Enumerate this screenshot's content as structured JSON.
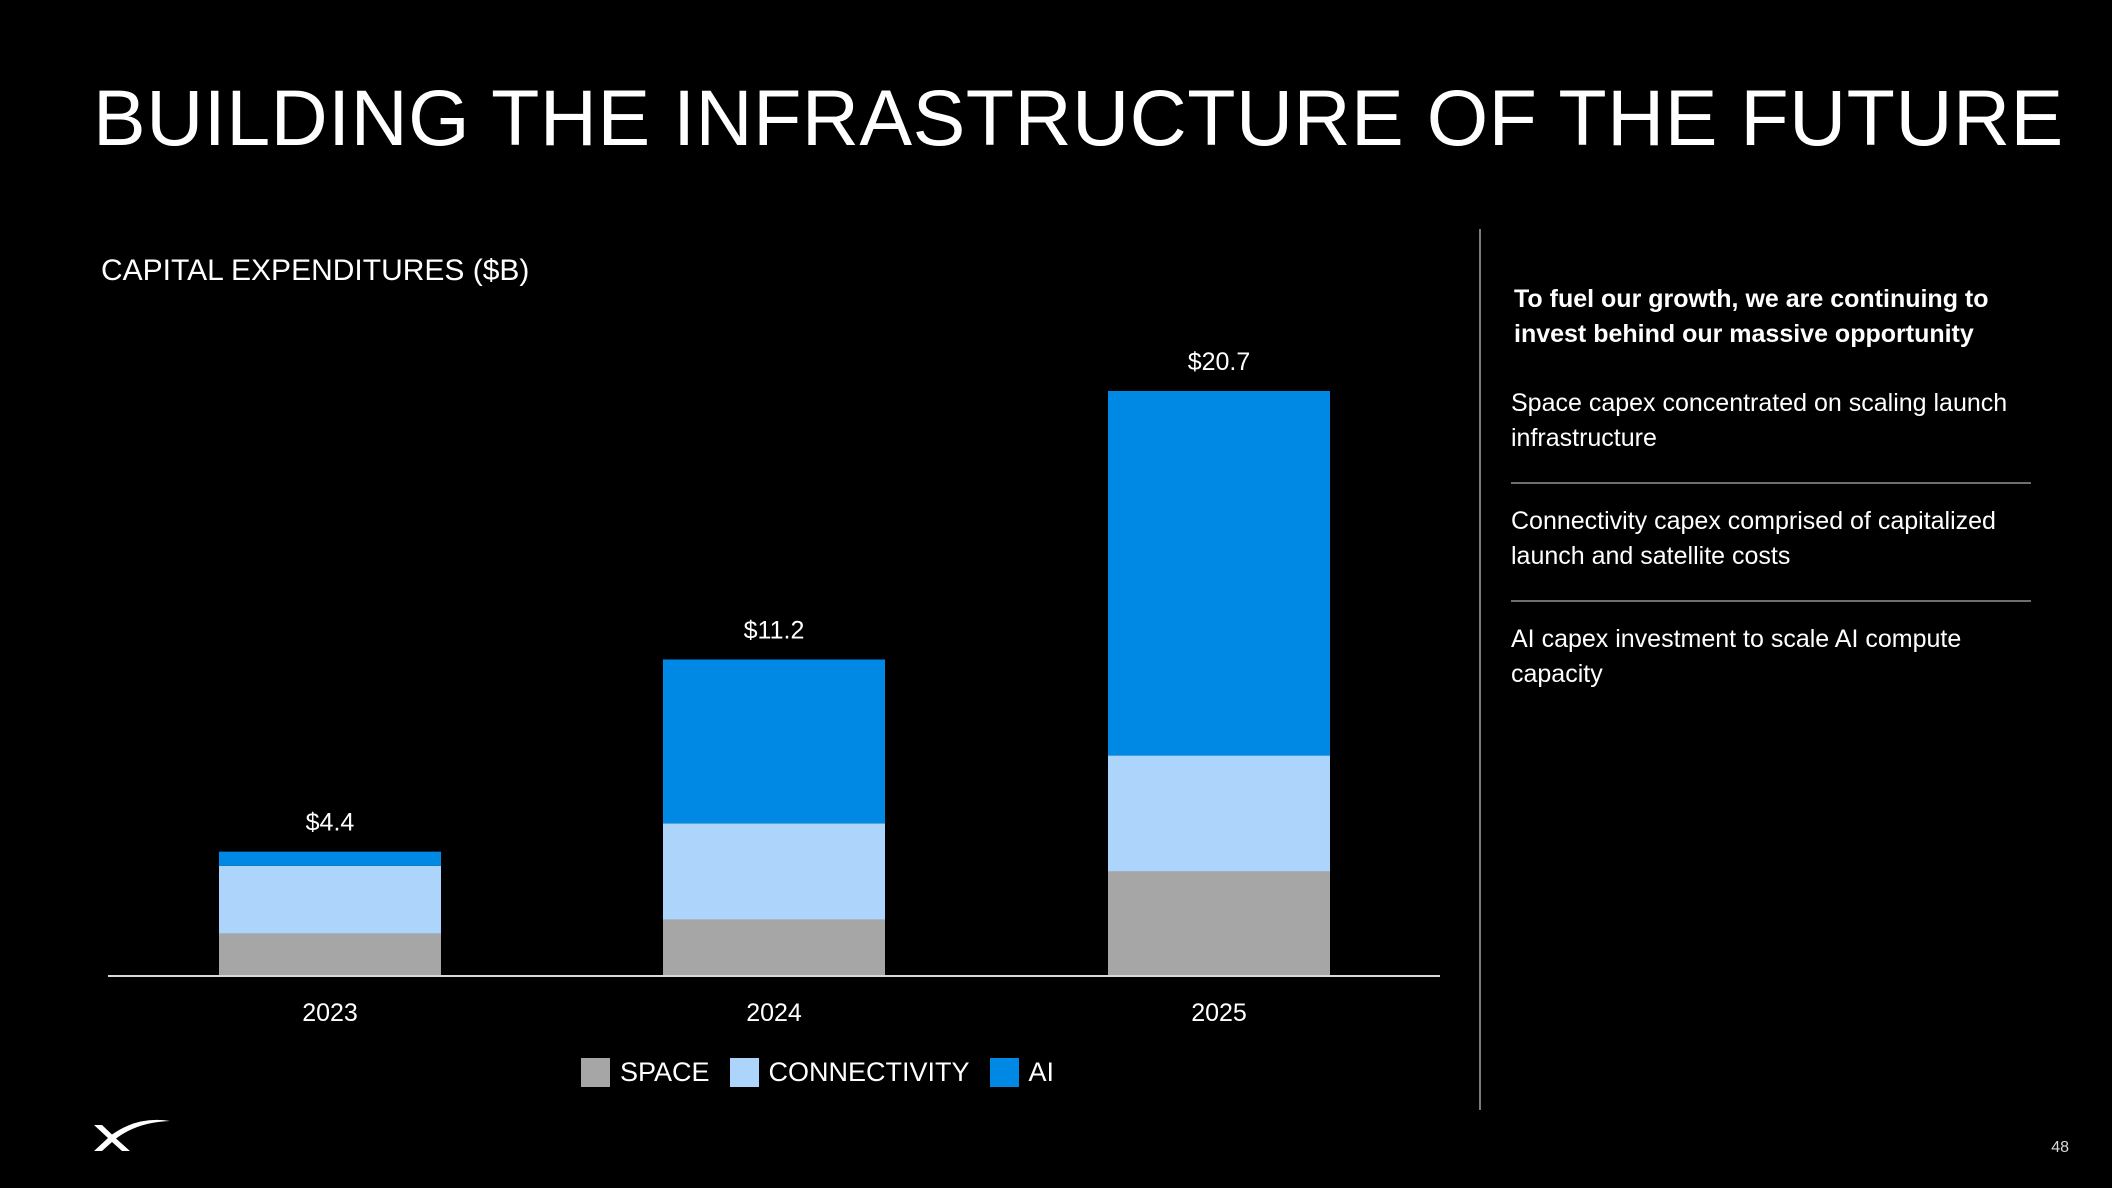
{
  "slide": {
    "title": "BUILDING THE INFRASTRUCTURE OF THE FUTURE",
    "page_number": "48",
    "logo_icon": "x-logo-icon"
  },
  "right_panel": {
    "heading": "To fuel our growth, we are continuing to invest behind our massive opportunity",
    "items": [
      "Space capex concentrated on scaling launch infrastructure",
      "Connectivity capex comprised of capitalized launch and satellite costs",
      "AI capex investment to scale AI compute capacity"
    ]
  },
  "colors": {
    "background": "#000000",
    "space": "#A6A6A6",
    "connectivity": "#ADD4FB",
    "ai": "#0088E5",
    "axis": "#D9D9D9"
  },
  "chart_data": {
    "type": "bar",
    "stacked": true,
    "title": "CAPITAL EXPENDITURES ($B)",
    "categories": [
      "2023",
      "2024",
      "2025"
    ],
    "series": [
      {
        "name": "SPACE",
        "values": [
          1.5,
          2.0,
          3.7
        ]
      },
      {
        "name": "CONNECTIVITY",
        "values": [
          2.4,
          3.4,
          4.1
        ]
      },
      {
        "name": "AI",
        "values": [
          0.5,
          5.8,
          12.9
        ]
      }
    ],
    "totals": [
      4.4,
      11.2,
      20.7
    ],
    "total_labels": [
      "$4.4",
      "$11.2",
      "$20.7"
    ],
    "legend_position": "bottom",
    "ylim": [
      0,
      20.7
    ],
    "grid": false,
    "y_axis_visible": false
  }
}
